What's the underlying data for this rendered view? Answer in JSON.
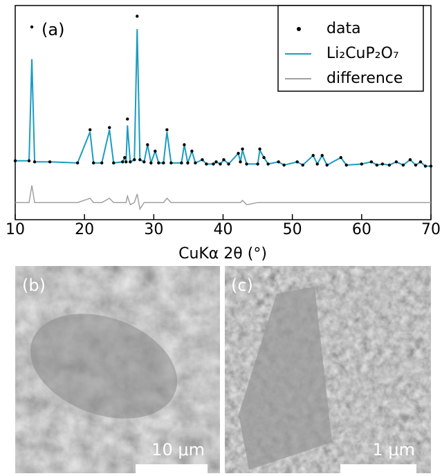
{
  "chart_data": {
    "type": "line",
    "annotation": "(a)",
    "x_label": "CuKα 2θ (°)",
    "xlim": [
      10,
      70
    ],
    "xticks": [
      10,
      20,
      30,
      40,
      50,
      60,
      70
    ],
    "ylim": [
      0,
      100
    ],
    "legend": "upper right",
    "x": [
      10,
      12.0,
      12.4,
      12.8,
      15,
      19.0,
      20.8,
      21.3,
      22.5,
      23.6,
      24.2,
      25.5,
      25.8,
      26.0,
      26.2,
      26.6,
      27.2,
      27.6,
      28.0,
      28.6,
      29.1,
      29.6,
      30.2,
      30.7,
      31.4,
      31.9,
      32.5,
      34.0,
      34.4,
      34.9,
      35.5,
      36.0,
      37.0,
      37.6,
      38.6,
      39.0,
      39.6,
      40.1,
      40.8,
      42.2,
      42.5,
      42.8,
      43.4,
      45.0,
      45.3,
      45.9,
      46.5,
      48.0,
      48.8,
      50.7,
      51.5,
      53.0,
      53.6,
      54.3,
      55.0,
      57.0,
      57.8,
      60.0,
      61.4,
      62.2,
      63.0,
      64.0,
      65.0,
      66.0,
      67.0,
      67.8,
      68.5,
      69.2,
      70
    ],
    "series": [
      {
        "name": "data",
        "color": "#000000",
        "marker": "dot",
        "values": [
          27.5,
          27.5,
          90,
          27,
          27,
          26.5,
          42,
          26.5,
          26.5,
          43,
          26.5,
          27,
          29,
          27,
          47,
          27,
          28,
          95,
          28,
          27,
          35,
          26.5,
          32,
          26.5,
          26.5,
          42,
          26.5,
          26.5,
          35,
          26.5,
          32,
          26.5,
          28,
          26,
          26,
          27,
          26,
          28,
          26,
          31,
          27,
          33,
          26,
          26,
          33,
          29,
          26,
          27,
          25.5,
          27,
          25.5,
          30,
          26,
          30,
          25.5,
          29,
          25.5,
          26,
          27,
          25.5,
          26,
          25.5,
          27,
          25.5,
          28,
          25.5,
          27,
          25,
          25
        ]
      },
      {
        "name": "Li₂CuP₂O₇",
        "color": "#1b9cc0",
        "values": [
          27.5,
          27.5,
          75,
          27,
          27,
          26.5,
          41,
          26.5,
          26.5,
          42,
          26.5,
          27,
          29,
          27,
          44,
          27,
          28,
          89,
          28,
          27,
          35,
          26.5,
          32,
          26.5,
          26.5,
          41,
          26.5,
          26.5,
          35,
          26.5,
          32,
          26.5,
          28,
          26,
          26,
          27,
          26,
          28,
          26,
          31,
          27,
          32.5,
          26,
          26,
          32.5,
          29,
          26,
          27,
          25.5,
          27,
          25.5,
          30,
          26,
          30,
          25.5,
          29,
          25.5,
          26,
          27,
          25.5,
          26,
          25.5,
          27,
          25.5,
          28,
          25.5,
          27,
          25,
          25
        ]
      },
      {
        "name": "difference",
        "color": "#a0a0a0",
        "values": [
          8,
          8,
          16,
          8,
          8,
          8,
          10,
          8,
          8,
          10,
          8,
          8,
          8,
          8,
          11,
          7,
          8,
          12,
          5,
          8,
          8,
          8,
          8,
          8,
          8,
          10,
          8,
          8,
          8,
          8,
          8,
          8,
          8,
          8,
          8,
          8,
          8,
          8,
          8,
          8,
          8,
          9,
          7,
          8,
          8,
          8,
          8,
          8,
          8,
          8,
          8,
          8,
          8,
          8,
          8,
          8,
          8,
          8,
          8,
          8,
          8,
          8,
          8,
          8,
          8,
          8,
          8,
          8,
          8
        ]
      }
    ]
  },
  "panels": [
    {
      "label": "(b)",
      "scale_bar": "10 μm"
    },
    {
      "label": "(c)",
      "scale_bar": "1 μm"
    }
  ]
}
